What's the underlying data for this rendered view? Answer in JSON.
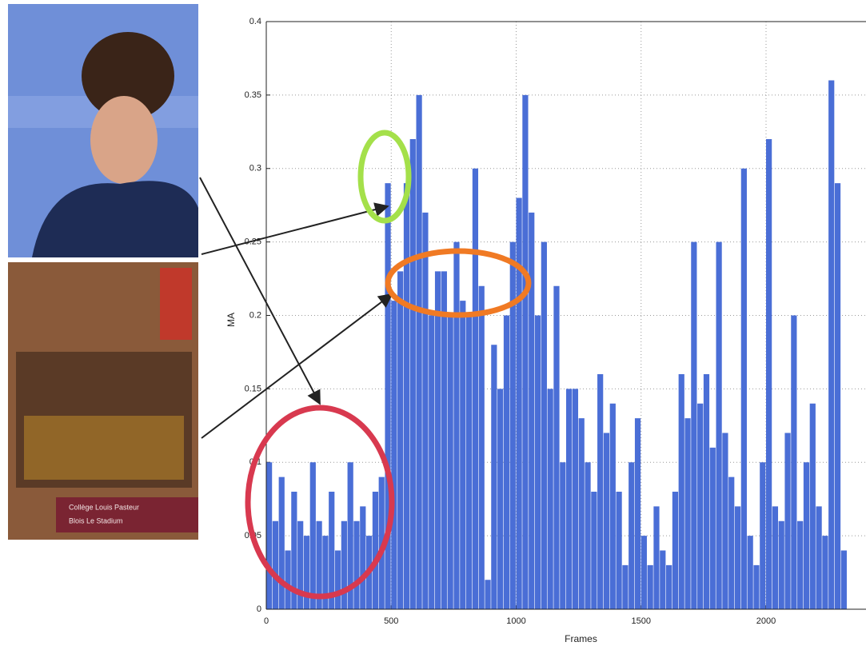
{
  "chart_data": {
    "type": "bar",
    "xlabel": "Frames",
    "ylabel": "MA",
    "annotations": [
      "Collège Louis Pasteur",
      "Blois Le Stadium"
    ],
    "color": "#4a6ed6",
    "grid": true,
    "xlim": [
      0,
      2400
    ],
    "ylim": [
      0,
      0.4
    ],
    "xticks": [
      0,
      500,
      1000,
      1500,
      2000
    ],
    "yticks": [
      0,
      0.05,
      0.1,
      0.15,
      0.2,
      0.25,
      0.3,
      0.35,
      0.4
    ],
    "x": [
      0,
      25,
      50,
      75,
      100,
      125,
      150,
      175,
      200,
      225,
      250,
      275,
      300,
      325,
      350,
      375,
      400,
      425,
      450,
      475,
      500,
      525,
      550,
      575,
      600,
      625,
      650,
      675,
      700,
      725,
      750,
      775,
      800,
      825,
      850,
      875,
      900,
      925,
      950,
      975,
      1000,
      1025,
      1050,
      1075,
      1100,
      1125,
      1150,
      1175,
      1200,
      1225,
      1250,
      1275,
      1300,
      1325,
      1350,
      1375,
      1400,
      1425,
      1450,
      1475,
      1500,
      1525,
      1550,
      1575,
      1600,
      1625,
      1650,
      1675,
      1700,
      1725,
      1750,
      1775,
      1800,
      1825,
      1850,
      1875,
      1900,
      1925,
      1950,
      1975,
      2000,
      2025,
      2050,
      2075,
      2100,
      2125,
      2150,
      2175,
      2200,
      2225,
      2250,
      2275,
      2300
    ],
    "values": [
      0.1,
      0.06,
      0.09,
      0.04,
      0.08,
      0.06,
      0.05,
      0.1,
      0.06,
      0.05,
      0.08,
      0.04,
      0.06,
      0.1,
      0.06,
      0.07,
      0.05,
      0.08,
      0.09,
      0.29,
      0.21,
      0.23,
      0.29,
      0.32,
      0.35,
      0.27,
      0.2,
      0.23,
      0.23,
      0.2,
      0.25,
      0.21,
      0.2,
      0.3,
      0.22,
      0.02,
      0.18,
      0.15,
      0.2,
      0.25,
      0.28,
      0.35,
      0.27,
      0.2,
      0.25,
      0.15,
      0.22,
      0.1,
      0.15,
      0.15,
      0.13,
      0.1,
      0.08,
      0.16,
      0.12,
      0.14,
      0.08,
      0.03,
      0.1,
      0.13,
      0.05,
      0.03,
      0.07,
      0.04,
      0.03,
      0.08,
      0.16,
      0.13,
      0.25,
      0.14,
      0.16,
      0.11,
      0.25,
      0.12,
      0.09,
      0.07,
      0.3,
      0.05,
      0.03,
      0.1,
      0.32,
      0.07,
      0.06,
      0.12,
      0.2,
      0.06,
      0.1,
      0.14,
      0.07,
      0.05,
      0.36,
      0.29,
      0.04
    ]
  }
}
